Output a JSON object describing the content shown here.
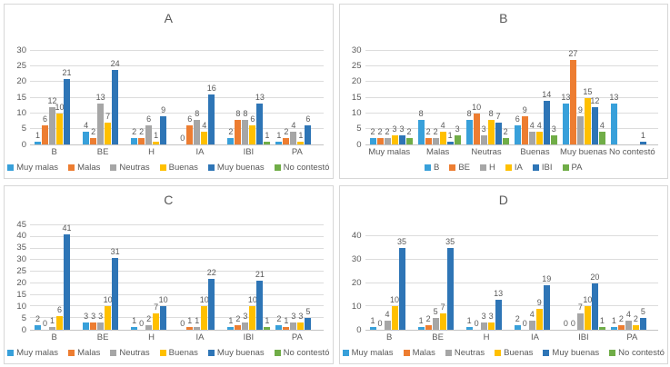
{
  "palette": {
    "light_blue": "#38a0da",
    "orange": "#ed7d31",
    "gray": "#a6a6a6",
    "gold": "#ffc000",
    "dark_blue": "#2e75b6",
    "green": "#70ad47",
    "text": "#595959",
    "gridline": "#dcdcdc"
  },
  "chart_data": [
    {
      "type": "bar",
      "title": "A",
      "categories": [
        "B",
        "BE",
        "H",
        "IA",
        "IBI",
        "PA"
      ],
      "series": [
        {
          "name": "Muy malas",
          "color": "#38a0da",
          "values": [
            1,
            4,
            2,
            0,
            2,
            1
          ]
        },
        {
          "name": "Malas",
          "color": "#ed7d31",
          "values": [
            6,
            2,
            2,
            6,
            8,
            2
          ]
        },
        {
          "name": "Neutras",
          "color": "#a6a6a6",
          "values": [
            12,
            13,
            6,
            8,
            8,
            4
          ]
        },
        {
          "name": "Buenas",
          "color": "#ffc000",
          "values": [
            10,
            7,
            1,
            4,
            6,
            1
          ]
        },
        {
          "name": "Muy buenas",
          "color": "#2e75b6",
          "values": [
            21,
            24,
            9,
            16,
            13,
            6
          ]
        },
        {
          "name": "No contestó",
          "color": "#70ad47",
          "values": [
            null,
            null,
            null,
            null,
            1,
            null
          ]
        }
      ],
      "ylim": [
        0,
        30
      ],
      "ystep": 5,
      "grid": true,
      "legend_position": "bottom",
      "data_labels": true
    },
    {
      "type": "bar",
      "title": "B",
      "categories": [
        "Muy malas",
        "Malas",
        "Neutras",
        "Buenas",
        "Muy buenas",
        "No contestó"
      ],
      "series": [
        {
          "name": "B",
          "color": "#38a0da",
          "values": [
            2,
            8,
            8,
            6,
            13,
            13
          ]
        },
        {
          "name": "BE",
          "color": "#ed7d31",
          "values": [
            2,
            2,
            10,
            9,
            27,
            null
          ]
        },
        {
          "name": "H",
          "color": "#a6a6a6",
          "values": [
            2,
            2,
            3,
            4,
            9,
            null
          ]
        },
        {
          "name": "IA",
          "color": "#ffc000",
          "values": [
            3,
            4,
            8,
            4,
            15,
            null
          ]
        },
        {
          "name": "IBI",
          "color": "#2e75b6",
          "values": [
            3,
            1,
            7,
            14,
            12,
            1
          ]
        },
        {
          "name": "PA",
          "color": "#70ad47",
          "values": [
            2,
            3,
            2,
            3,
            4,
            null
          ]
        }
      ],
      "ylim": [
        0,
        30
      ],
      "ystep": 5,
      "grid": true,
      "legend_position": "bottom",
      "data_labels": true
    },
    {
      "type": "bar",
      "title": "C",
      "categories": [
        "B",
        "BE",
        "H",
        "IA",
        "IBI",
        "PA"
      ],
      "series": [
        {
          "name": "Muy malas",
          "color": "#38a0da",
          "values": [
            2,
            3,
            1,
            0,
            1,
            2
          ]
        },
        {
          "name": "Malas",
          "color": "#ed7d31",
          "values": [
            0,
            3,
            0,
            1,
            2,
            1
          ]
        },
        {
          "name": "Neutras",
          "color": "#a6a6a6",
          "values": [
            1,
            3,
            2,
            1,
            3,
            3
          ]
        },
        {
          "name": "Buenas",
          "color": "#ffc000",
          "values": [
            6,
            10,
            7,
            10,
            10,
            3
          ]
        },
        {
          "name": "Muy buenas",
          "color": "#2e75b6",
          "values": [
            41,
            31,
            10,
            22,
            21,
            5
          ]
        },
        {
          "name": "No contestó",
          "color": "#70ad47",
          "values": [
            null,
            null,
            null,
            null,
            1,
            null
          ]
        }
      ],
      "ylim": [
        0,
        45
      ],
      "ystep": 5,
      "grid": true,
      "legend_position": "bottom",
      "data_labels": true
    },
    {
      "type": "bar",
      "title": "D",
      "categories": [
        "B",
        "BE",
        "H",
        "IA",
        "IBI",
        "PA"
      ],
      "series": [
        {
          "name": "Muy malas",
          "color": "#38a0da",
          "values": [
            1,
            1,
            1,
            2,
            0,
            1
          ]
        },
        {
          "name": "Malas",
          "color": "#ed7d31",
          "values": [
            0,
            2,
            0,
            0,
            0,
            2
          ]
        },
        {
          "name": "Neutras",
          "color": "#a6a6a6",
          "values": [
            4,
            5,
            3,
            4,
            7,
            4
          ]
        },
        {
          "name": "Buenas",
          "color": "#ffc000",
          "values": [
            10,
            7,
            3,
            9,
            10,
            2
          ]
        },
        {
          "name": "Muy buenas",
          "color": "#2e75b6",
          "values": [
            35,
            35,
            13,
            19,
            20,
            5
          ]
        },
        {
          "name": "No contestó",
          "color": "#70ad47",
          "values": [
            null,
            null,
            null,
            null,
            1,
            null
          ]
        }
      ],
      "ylim": [
        0,
        40
      ],
      "ystep": 10,
      "grid": true,
      "legend_position": "bottom",
      "data_labels": true
    }
  ]
}
